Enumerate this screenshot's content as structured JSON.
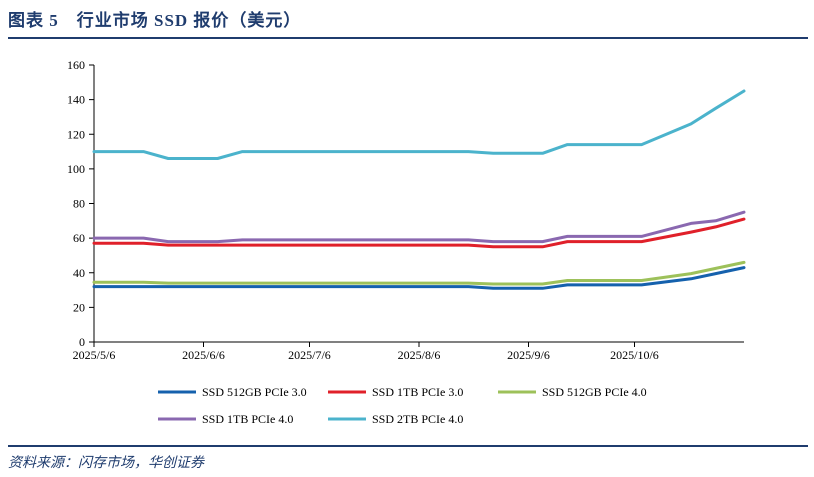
{
  "header": {
    "title": "图表 5　行业市场 SSD 报价（美元）"
  },
  "footer": {
    "source": "资料来源：闪存市场，华创证券"
  },
  "colors": {
    "SSD 512GB PCIe 3.0": "#1561ad",
    "SSD 1TB PCIe 3.0": "#e0202a",
    "SSD 512GB PCIe 4.0": "#9dc15a",
    "SSD 1TB PCIe 4.0": "#8a68b0",
    "SSD 2TB PCIe 4.0": "#4bb3cc"
  },
  "chart_data": {
    "type": "line",
    "title": "",
    "xlabel": "",
    "ylabel": "",
    "ylim": [
      0,
      160
    ],
    "yticks": [
      0,
      20,
      40,
      60,
      80,
      100,
      120,
      140,
      160
    ],
    "xlim": [
      "2025-05-06",
      "2025-11-06"
    ],
    "xticks": [
      {
        "date": "2025-05-06",
        "label": "2025/5/6"
      },
      {
        "date": "2025-06-06",
        "label": "2025/6/6"
      },
      {
        "date": "2025-07-06",
        "label": "2025/7/6"
      },
      {
        "date": "2025-08-06",
        "label": "2025/8/6"
      },
      {
        "date": "2025-09-06",
        "label": "2025/9/6"
      },
      {
        "date": "2025-10-06",
        "label": "2025/10/6"
      }
    ],
    "grid": false,
    "legend_position": "bottom",
    "x": [
      "2025-05-06",
      "2025-05-20",
      "2025-05-27",
      "2025-06-10",
      "2025-06-17",
      "2025-08-20",
      "2025-08-27",
      "2025-09-10",
      "2025-09-17",
      "2025-10-08",
      "2025-10-22",
      "2025-10-29",
      "2025-11-06"
    ],
    "series": [
      {
        "name": "SSD 512GB PCIe 3.0",
        "values": [
          32,
          32,
          32,
          32,
          32,
          32,
          31,
          31,
          33,
          33,
          36.5,
          39.5,
          43
        ]
      },
      {
        "name": "SSD 1TB PCIe 3.0",
        "values": [
          57,
          57,
          56,
          56,
          56,
          56,
          55,
          55,
          58,
          58,
          63.5,
          66.5,
          71
        ]
      },
      {
        "name": "SSD 512GB PCIe 4.0",
        "values": [
          34.5,
          34.5,
          34,
          34,
          34,
          34,
          33.5,
          33.5,
          35.5,
          35.5,
          39.5,
          42.5,
          46
        ]
      },
      {
        "name": "SSD 1TB PCIe 4.0",
        "values": [
          60,
          60,
          58,
          58,
          59,
          59,
          58,
          58,
          61,
          61,
          68.5,
          70,
          75
        ]
      },
      {
        "name": "SSD 2TB PCIe 4.0",
        "values": [
          110,
          110,
          106,
          106,
          110,
          110,
          109,
          109,
          114,
          114,
          126,
          135,
          145
        ]
      }
    ]
  }
}
